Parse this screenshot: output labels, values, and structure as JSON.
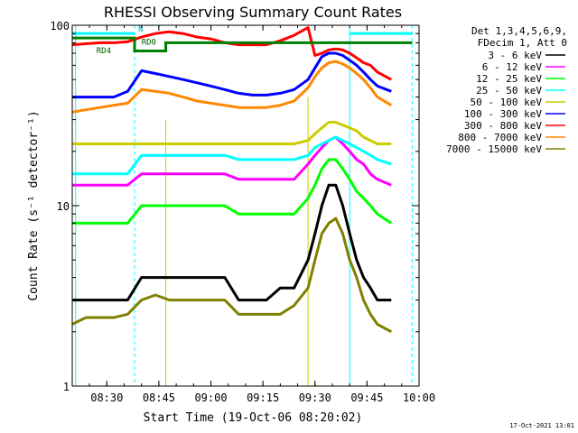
{
  "chart_data": {
    "type": "line",
    "title": "RHESSI Observing Summary Count Rates",
    "xlabel": "Start Time (19-Oct-06 08:20:02)",
    "ylabel": "Count Rate (s⁻¹ detector⁻¹)",
    "y_scale": "log",
    "ylim": [
      1,
      100
    ],
    "xlim": [
      "08:20:02",
      "10:00"
    ],
    "x_ticks": [
      "08:30",
      "08:45",
      "09:00",
      "09:15",
      "09:30",
      "09:45",
      "10:00"
    ],
    "y_ticks": [
      "1",
      "10",
      "100"
    ],
    "legend_header": [
      "Det 1,3,4,5,6,9,",
      "FDecim 1, Att 0"
    ],
    "legend_position": "right",
    "timestamp": "17-Oct-2021 13:01",
    "markers": [
      "N",
      "RD0",
      "RD4"
    ],
    "x": [
      "08:20",
      "08:24",
      "08:28",
      "08:32",
      "08:36",
      "08:40",
      "08:44",
      "08:48",
      "08:52",
      "08:56",
      "09:00",
      "09:04",
      "09:08",
      "09:12",
      "09:16",
      "09:20",
      "09:24",
      "09:28",
      "09:30",
      "09:32",
      "09:34",
      "09:36",
      "09:38",
      "09:40",
      "09:42",
      "09:44",
      "09:46",
      "09:48",
      "09:52"
    ],
    "series": [
      {
        "name": "3 - 6 keV",
        "color": "#000000",
        "values": [
          3,
          3,
          3,
          3,
          3,
          4,
          4,
          4,
          4,
          4,
          4,
          4,
          3,
          3,
          3,
          3.5,
          3.5,
          5,
          7,
          10,
          13,
          13,
          10,
          7,
          5,
          4,
          3.5,
          3,
          3
        ]
      },
      {
        "name": "6 - 12 keV",
        "color": "#ff00ff",
        "values": [
          13,
          13,
          13,
          13,
          13,
          15,
          15,
          15,
          15,
          15,
          15,
          15,
          14,
          14,
          14,
          14,
          14,
          17,
          19,
          21,
          23,
          24,
          22,
          20,
          18,
          17,
          15,
          14,
          13
        ]
      },
      {
        "name": "12 - 25 keV",
        "color": "#00ff00",
        "values": [
          8,
          8,
          8,
          8,
          8,
          10,
          10,
          10,
          10,
          10,
          10,
          10,
          9,
          9,
          9,
          9,
          9,
          11,
          13,
          16,
          18,
          18,
          16,
          14,
          12,
          11,
          10,
          9,
          8
        ]
      },
      {
        "name": "25 - 50 keV",
        "color": "#00ffff",
        "values": [
          15,
          15,
          15,
          15,
          15,
          19,
          19,
          19,
          19,
          19,
          19,
          19,
          18,
          18,
          18,
          18,
          18,
          19,
          21,
          22,
          23,
          24,
          23,
          22,
          21,
          20,
          19,
          18,
          17
        ]
      },
      {
        "name": "50 - 100 keV",
        "color": "#cccc00",
        "values": [
          22,
          22,
          22,
          22,
          22,
          22,
          22,
          22,
          22,
          22,
          22,
          22,
          22,
          22,
          22,
          22,
          22,
          23,
          25,
          27,
          29,
          29,
          28,
          27,
          26,
          24,
          23,
          22,
          22
        ]
      },
      {
        "name": "100 - 300 keV",
        "color": "#0000ff",
        "values": [
          40,
          40,
          40,
          40,
          43,
          56,
          54,
          52,
          50,
          48,
          46,
          44,
          42,
          41,
          41,
          42,
          44,
          50,
          58,
          67,
          70,
          70,
          68,
          64,
          60,
          55,
          50,
          46,
          43
        ]
      },
      {
        "name": "300 - 800 keV",
        "color": "#ff0000",
        "values": [
          78,
          79,
          80,
          80,
          81,
          86,
          90,
          92,
          90,
          86,
          84,
          80,
          78,
          78,
          78,
          82,
          88,
          97,
          68,
          70,
          73,
          74,
          73,
          70,
          66,
          62,
          60,
          55,
          50
        ]
      },
      {
        "name": "800 - 7000 keV",
        "color": "#ff8800",
        "values": [
          33,
          34,
          35,
          36,
          37,
          44,
          43,
          42,
          40,
          38,
          37,
          36,
          35,
          35,
          35,
          36,
          38,
          45,
          52,
          58,
          62,
          63,
          61,
          58,
          54,
          50,
          45,
          40,
          36
        ]
      },
      {
        "name": "7000 - 15000 keV",
        "color": "#808000",
        "values": [
          2.2,
          2.4,
          2.4,
          2.4,
          2.5,
          3,
          3.2,
          3,
          3,
          3,
          3,
          3,
          2.5,
          2.5,
          2.5,
          2.5,
          2.8,
          3.5,
          5,
          7,
          8,
          8.5,
          7,
          5,
          4,
          3,
          2.5,
          2.2,
          2
        ]
      }
    ]
  }
}
